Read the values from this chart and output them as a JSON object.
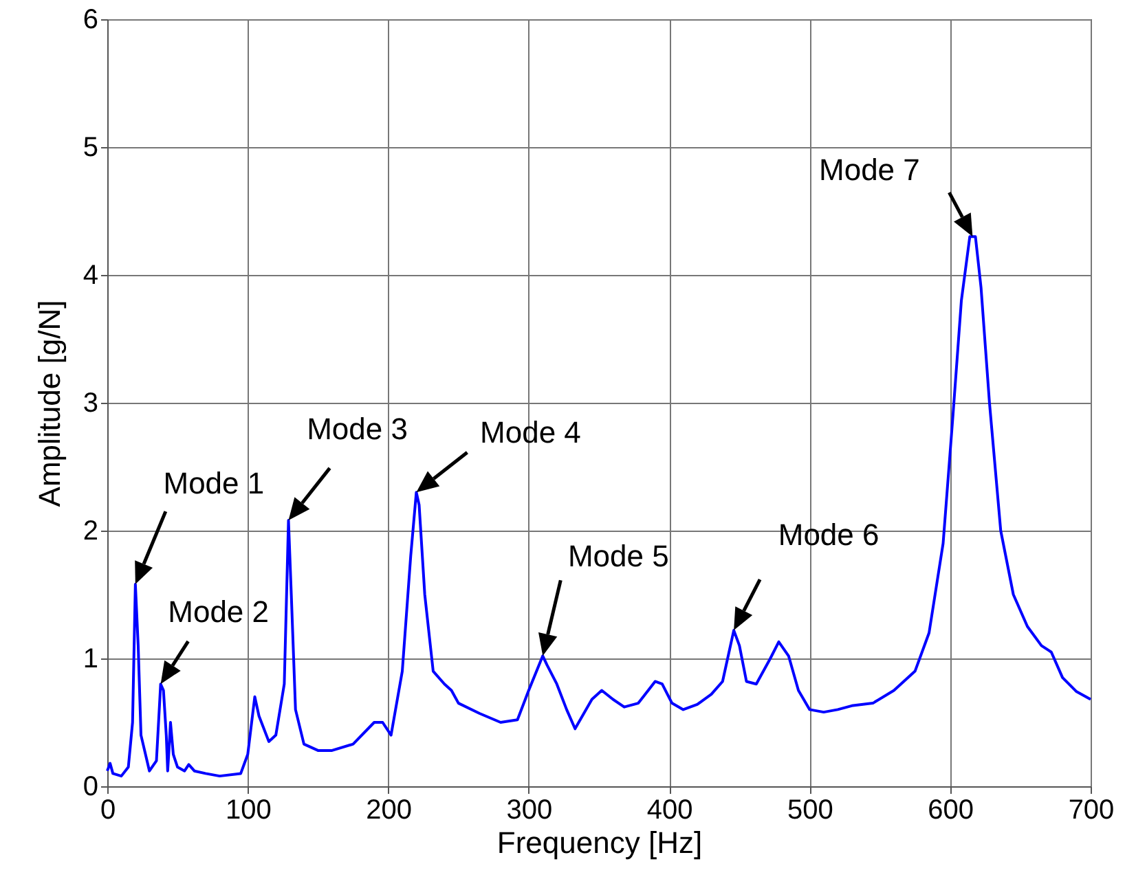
{
  "chart_data": {
    "type": "line",
    "xlabel": "Frequency [Hz]",
    "ylabel": "Amplitude [g/N]",
    "x": [
      0,
      2,
      4,
      10,
      15,
      18,
      20,
      22,
      24,
      30,
      35,
      38,
      40,
      42,
      43,
      44,
      45,
      47,
      50,
      55,
      58,
      62,
      70,
      80,
      95,
      100,
      105,
      108,
      115,
      120,
      126,
      129,
      131,
      134,
      140,
      150,
      160,
      175,
      190,
      196,
      202,
      210,
      216,
      220,
      222,
      226,
      232,
      240,
      245,
      250,
      265,
      280,
      292,
      300,
      310,
      313,
      320,
      327,
      333,
      345,
      352,
      360,
      368,
      378,
      390,
      395,
      402,
      410,
      420,
      430,
      438,
      446,
      450,
      455,
      462,
      472,
      478,
      485,
      492,
      500,
      510,
      520,
      530,
      545,
      560,
      575,
      585,
      595,
      602,
      608,
      614,
      618,
      622,
      628,
      636,
      645,
      655,
      665,
      672,
      680,
      690,
      700
    ],
    "series": [
      {
        "color": "#0000ff",
        "values": [
          0.12,
          0.18,
          0.1,
          0.08,
          0.15,
          0.5,
          1.58,
          1.1,
          0.4,
          0.12,
          0.2,
          0.8,
          0.75,
          0.4,
          0.12,
          0.3,
          0.5,
          0.25,
          0.15,
          0.12,
          0.17,
          0.12,
          0.1,
          0.08,
          0.1,
          0.25,
          0.7,
          0.55,
          0.35,
          0.4,
          0.8,
          2.08,
          1.5,
          0.6,
          0.33,
          0.28,
          0.28,
          0.33,
          0.5,
          0.5,
          0.4,
          0.9,
          1.8,
          2.3,
          2.2,
          1.5,
          0.9,
          0.8,
          0.75,
          0.65,
          0.57,
          0.5,
          0.52,
          0.75,
          1.02,
          0.95,
          0.8,
          0.6,
          0.45,
          0.68,
          0.75,
          0.68,
          0.62,
          0.65,
          0.82,
          0.8,
          0.65,
          0.6,
          0.64,
          0.72,
          0.82,
          1.22,
          1.1,
          0.82,
          0.8,
          1.0,
          1.13,
          1.02,
          0.75,
          0.6,
          0.58,
          0.6,
          0.63,
          0.65,
          0.75,
          0.9,
          1.2,
          1.9,
          2.9,
          3.8,
          4.3,
          4.3,
          3.9,
          3.0,
          2.0,
          1.5,
          1.25,
          1.1,
          1.05,
          0.85,
          0.74,
          0.68
        ]
      }
    ],
    "xlim": [
      0,
      700
    ],
    "xticks": [
      0,
      100,
      200,
      300,
      400,
      500,
      600,
      700
    ],
    "ylim": [
      0,
      6
    ],
    "yticks": [
      0,
      1,
      2,
      3,
      4,
      5,
      6
    ],
    "grid": true,
    "marker": "none",
    "line_style": "solid",
    "annotations": [
      {
        "text": "Mode 1",
        "x": 20,
        "y": 1.58
      },
      {
        "text": "Mode 2",
        "x": 38,
        "y": 0.8
      },
      {
        "text": "Mode 3",
        "x": 129,
        "y": 2.08
      },
      {
        "text": "Mode 4",
        "x": 220,
        "y": 2.3
      },
      {
        "text": "Mode 5",
        "x": 310,
        "y": 1.02
      },
      {
        "text": "Mode 6",
        "x": 446,
        "y": 1.22
      },
      {
        "text": "Mode 7",
        "x": 616,
        "y": 4.3
      }
    ]
  }
}
